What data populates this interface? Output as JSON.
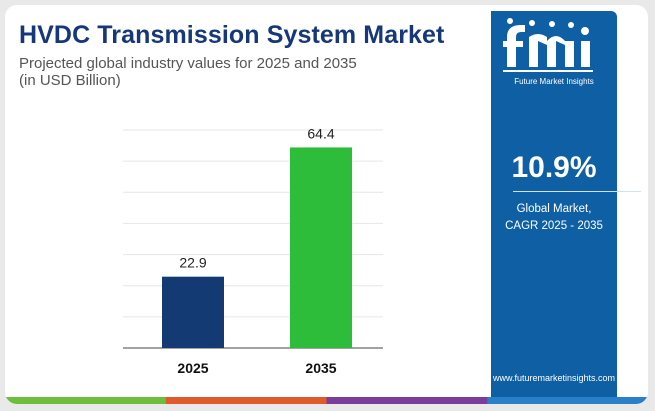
{
  "header": {
    "title": "HVDC Transmission System Market",
    "subtitle_line1": "Projected global industry values for 2025 and 2035",
    "subtitle_line2": "(in USD Billion)"
  },
  "sidebar": {
    "brand_caption": "Future Market Insights",
    "cagr_value": "10.9%",
    "cagr_label_line1": "Global Market,",
    "cagr_label_line2": "CAGR 2025 - 2035",
    "url": "www.futuremarketinsights.com"
  },
  "colors": {
    "title": "#16387a",
    "panel": "#0e5fa3",
    "bar_2025": "#133a73",
    "bar_2035": "#2ebd3a",
    "footer_stripe": [
      "#6cbf3a",
      "#e05a2b",
      "#7a3d9c",
      "#2a7fc9"
    ]
  },
  "chart_data": {
    "type": "bar",
    "categories": [
      "2025",
      "2035"
    ],
    "values": [
      22.9,
      64.4
    ],
    "bar_colors": [
      "#133a73",
      "#2ebd3a"
    ],
    "ylim": [
      0,
      70
    ],
    "grid": true,
    "data_labels": true
  }
}
